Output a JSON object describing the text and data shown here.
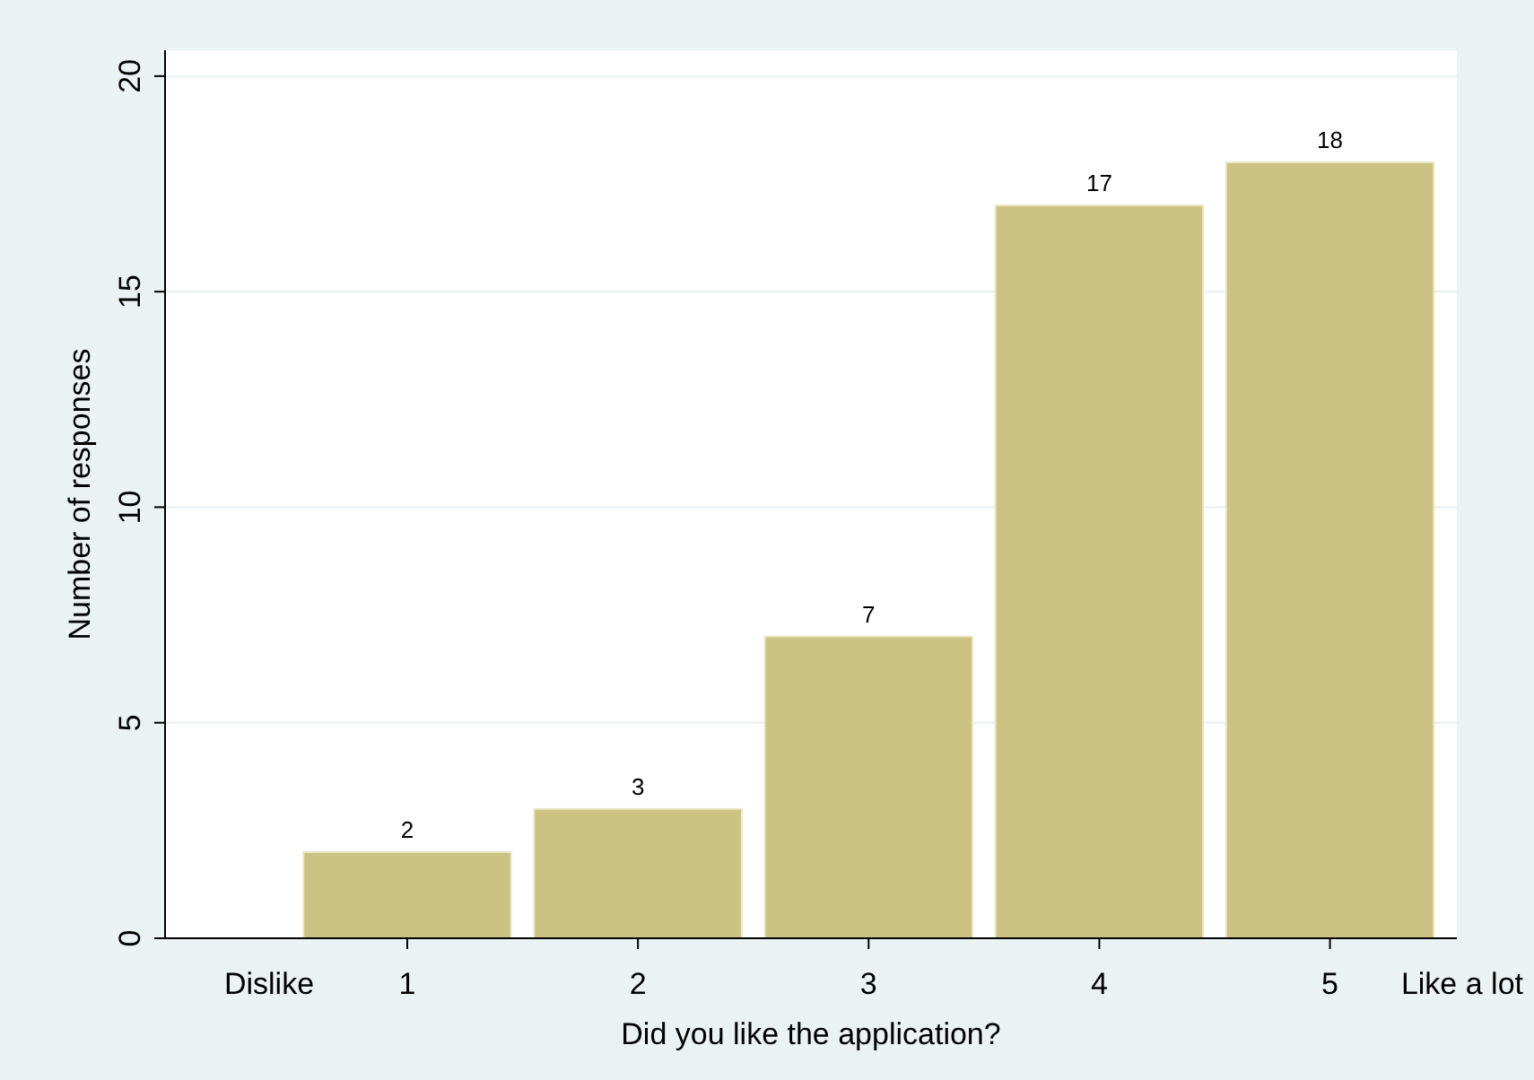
{
  "chart_data": {
    "type": "bar",
    "xlabel": "Did you like the application?",
    "ylabel": "Number of responses",
    "x": [
      1,
      2,
      3,
      4,
      5
    ],
    "values": [
      2,
      3,
      7,
      17,
      18
    ],
    "color": "#cbc283",
    "xlim": [
      -0.05,
      5.55
    ],
    "xticks": [
      1,
      2,
      3,
      4,
      5
    ],
    "ylim": [
      0,
      20.6
    ],
    "yticks": [
      0,
      5,
      10,
      15,
      20
    ],
    "grid": "y",
    "data_labels": true,
    "annotations": [
      "Dislike",
      "Like a lot"
    ]
  }
}
